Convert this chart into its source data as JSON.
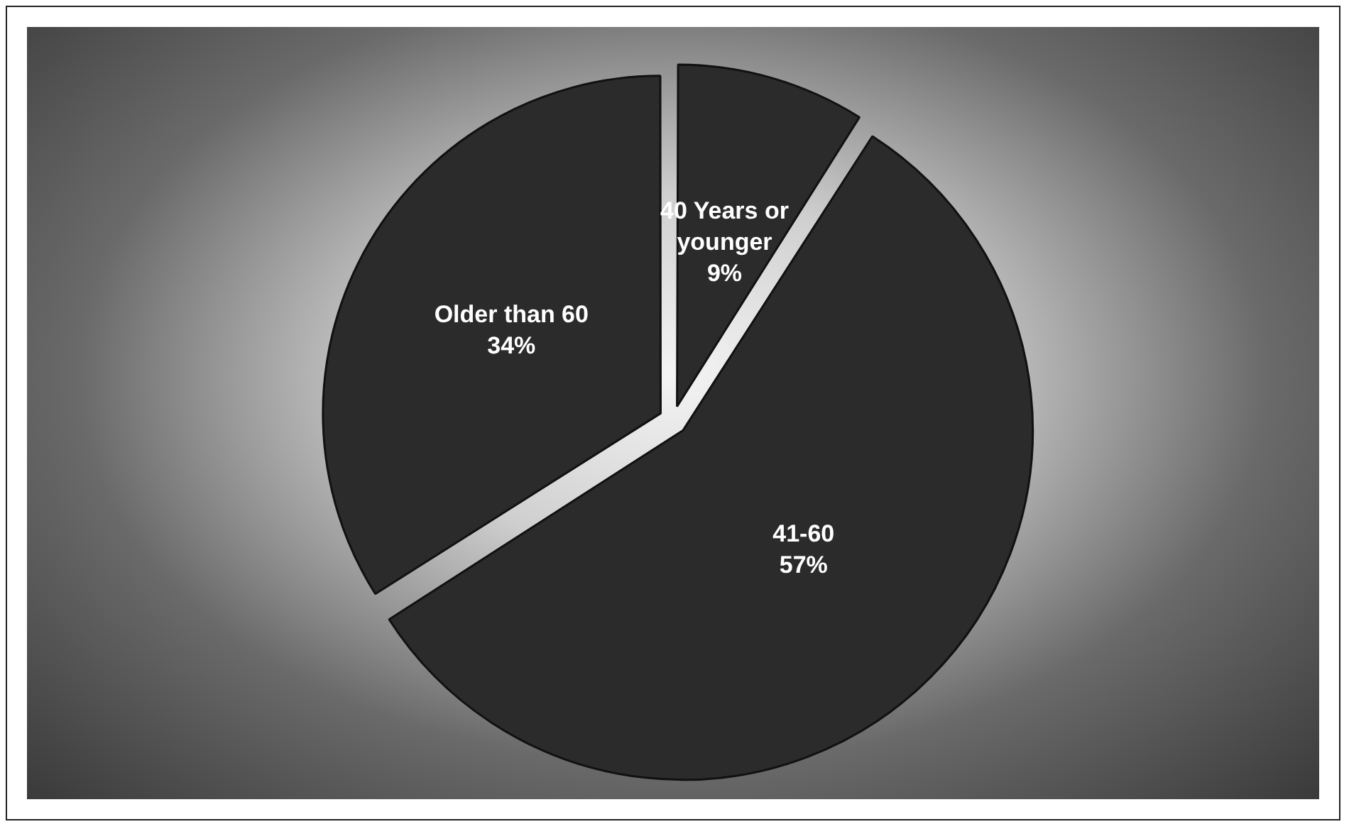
{
  "chart_data": {
    "type": "pie",
    "categories": [
      "40 Years or younger",
      "41-60",
      "Older than 60"
    ],
    "values": [
      9,
      57,
      34
    ],
    "value_labels": [
      "9%",
      "57%",
      "34%"
    ],
    "colors": [
      "#2b2b2b",
      "#2b2b2b",
      "#2b2b2b"
    ],
    "legend": false
  }
}
